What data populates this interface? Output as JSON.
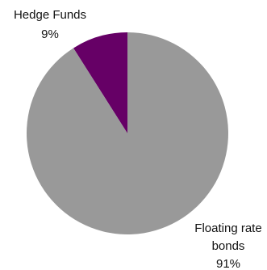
{
  "chart_data": {
    "type": "pie",
    "slices": [
      {
        "label": "Hedge Funds",
        "value": 9,
        "value_label": "9%",
        "color": "#660066"
      },
      {
        "label_lines": [
          "Floating rate",
          "bonds"
        ],
        "value": 91,
        "value_label": "91%",
        "color": "#999999"
      }
    ],
    "start_angle_deg": 0,
    "direction": "counterclockwise",
    "legend": "none"
  }
}
